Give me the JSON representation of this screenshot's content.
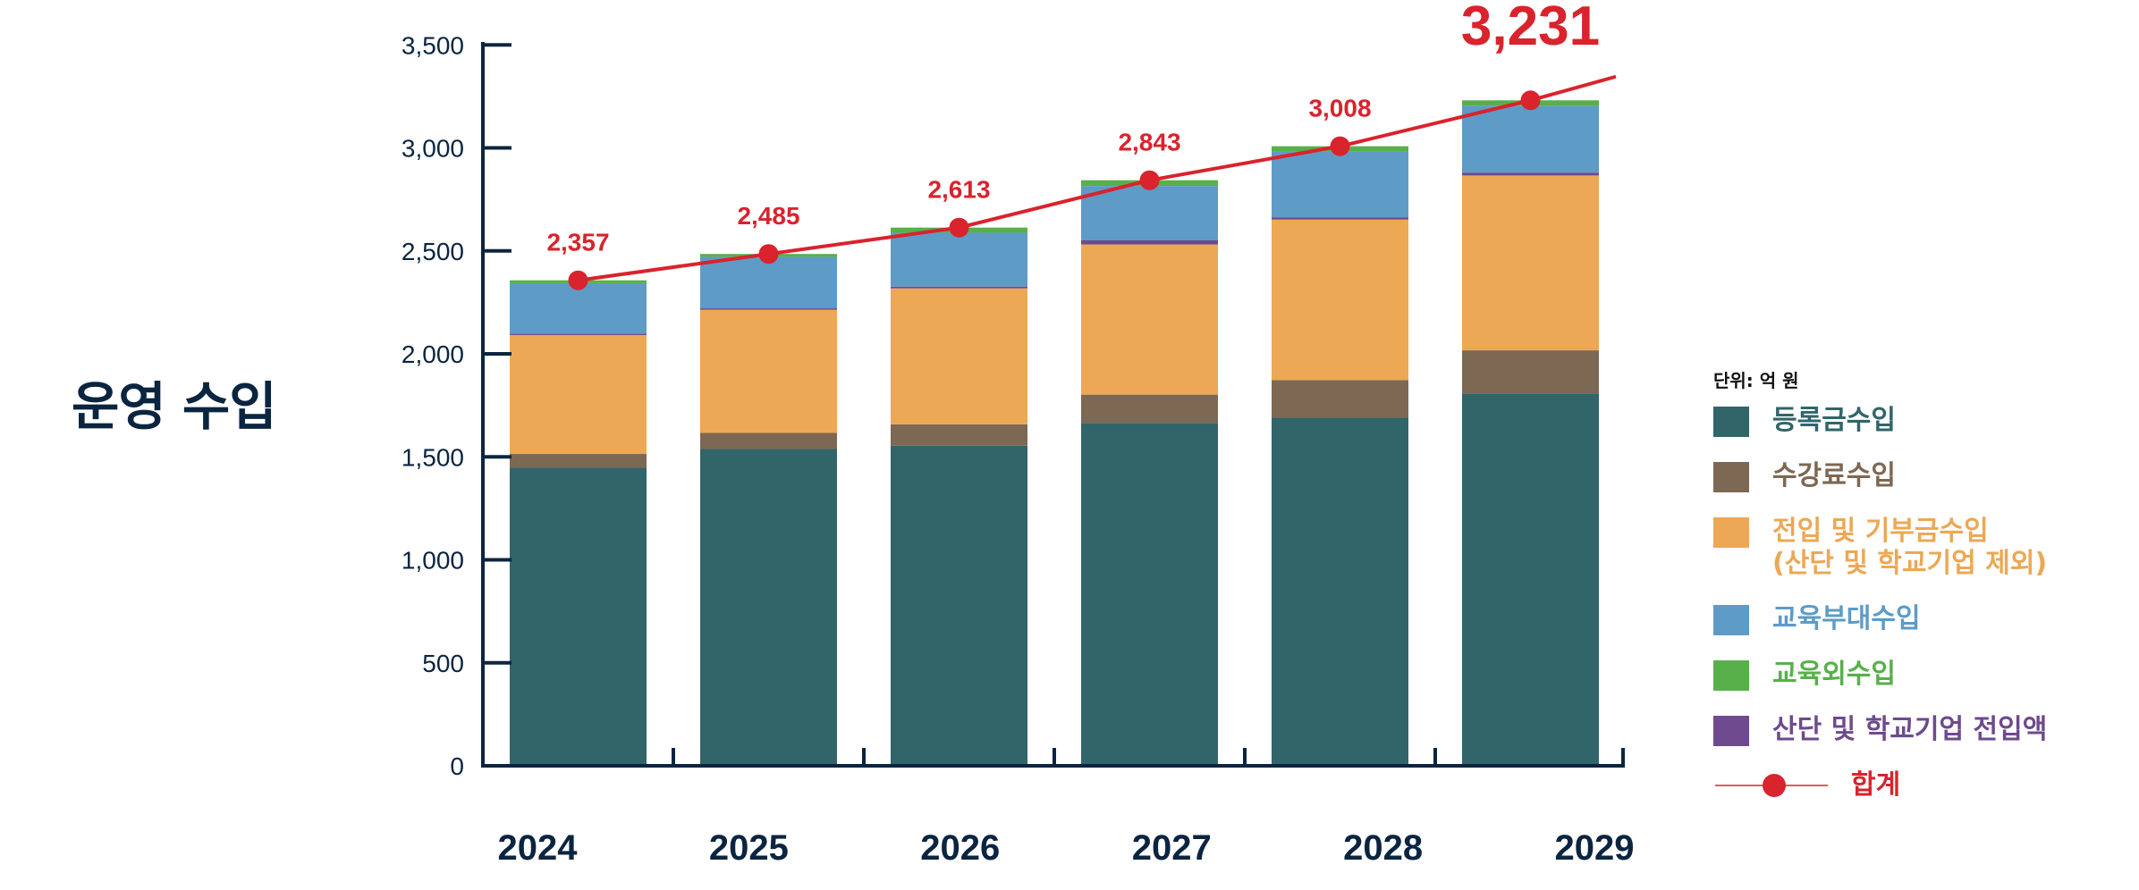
{
  "title": "운영 수입",
  "unit_label": "단위: 억 원",
  "colors": {
    "axis": "#0b2540",
    "total_line": "#d9232d"
  },
  "chart_data": {
    "type": "bar",
    "stacked": true,
    "title": "운영 수입",
    "xlabel": "",
    "ylabel": "",
    "unit": "억 원",
    "categories": [
      "2024",
      "2025",
      "2026",
      "2027",
      "2028",
      "2029"
    ],
    "ylim": [
      0,
      3500
    ],
    "yticks": [
      0,
      500,
      1000,
      1500,
      2000,
      2500,
      3000,
      3500
    ],
    "ytick_labels": [
      "0",
      "500",
      "1,000",
      "1,500",
      "2,000",
      "2,500",
      "3,000",
      "3,500"
    ],
    "grid": false,
    "legend_position": "right",
    "series": [
      {
        "name": "등록금수입",
        "color": "#31656a",
        "values": [
          1447,
          1538,
          1554,
          1665,
          1690,
          1808
        ]
      },
      {
        "name": "수강료수입",
        "color": "#7d6853",
        "values": [
          67,
          78,
          104,
          137,
          183,
          209
        ]
      },
      {
        "name": "전입 및 기부금수입\n(산단 및 학교기업 제외)",
        "color": "#eca854",
        "values": [
          579,
          600,
          660,
          729,
          779,
          849
        ]
      },
      {
        "name": "산단 및 학교기업 전입액",
        "color": "#6e4a8e",
        "values": [
          5,
          5,
          8,
          20,
          11,
          14
        ]
      },
      {
        "name": "교육부대수입",
        "color": "#5e9bc7",
        "values": [
          245,
          250,
          262,
          264,
          318,
          325
        ]
      },
      {
        "name": "교육외수입",
        "color": "#58b04b",
        "values": [
          14,
          14,
          25,
          28,
          27,
          26
        ]
      }
    ],
    "total": {
      "name": "합계",
      "type": "line",
      "color": "#d9232d",
      "values": [
        2357,
        2485,
        2613,
        2843,
        3008,
        3231
      ],
      "labels": [
        "2,357",
        "2,485",
        "2,613",
        "2,843",
        "3,008",
        "3,231"
      ]
    }
  },
  "legend": {
    "items": [
      {
        "label": "등록금수입",
        "color": "#31656a"
      },
      {
        "label": "수강료수입",
        "color": "#7d6853"
      },
      {
        "label": "전입 및 기부금수입\n(산단 및 학교기업 제외)",
        "color": "#eca854"
      },
      {
        "label": "교육부대수입",
        "color": "#5e9bc7"
      },
      {
        "label": "교육외수입",
        "color": "#58b04b"
      },
      {
        "label": "산단 및 학교기업 전입액",
        "color": "#6e4a8e"
      }
    ],
    "total_label": "합계",
    "total_color": "#d9232d"
  }
}
